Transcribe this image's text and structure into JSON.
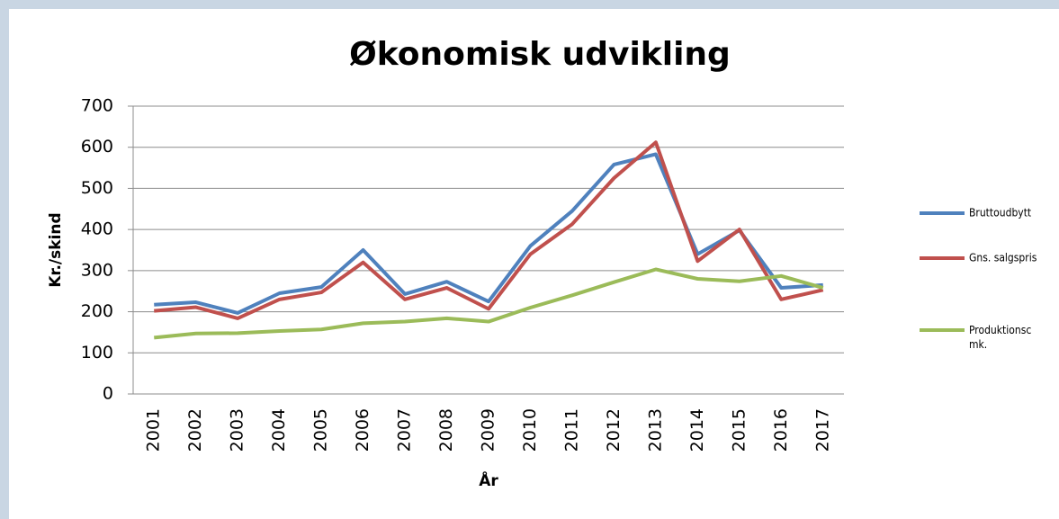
{
  "chart_data": {
    "type": "line",
    "title": "Økonomisk udvikling",
    "y_label": "Kr./skind",
    "x_label": "År",
    "categories": [
      "2001",
      "2002",
      "2003",
      "2004",
      "2005",
      "2006",
      "2007",
      "2008",
      "2009",
      "2010",
      "2011",
      "2012",
      "2013",
      "2014",
      "2015",
      "2016",
      "2017"
    ],
    "series": [
      {
        "name": "Bruttoudbytt",
        "color": "#4f81bd",
        "values": [
          217,
          223,
          197,
          245,
          260,
          350,
          243,
          273,
          225,
          360,
          445,
          558,
          583,
          340,
          398,
          258,
          265
        ]
      },
      {
        "name": "Gns. salgspris",
        "color": "#c0504d",
        "values": [
          202,
          211,
          184,
          230,
          247,
          320,
          230,
          258,
          207,
          340,
          413,
          525,
          612,
          323,
          400,
          230,
          253
        ]
      },
      {
        "name": "Produktionsc mk.",
        "color": "#9bbb59",
        "values": [
          137,
          147,
          148,
          153,
          157,
          172,
          176,
          184,
          176,
          210,
          240,
          272,
          303,
          280,
          274,
          287,
          258
        ]
      }
    ],
    "ylim": [
      0,
      700
    ],
    "yticks": [
      0,
      100,
      200,
      300,
      400,
      500,
      600,
      700
    ],
    "grid": true,
    "legend": "right"
  }
}
